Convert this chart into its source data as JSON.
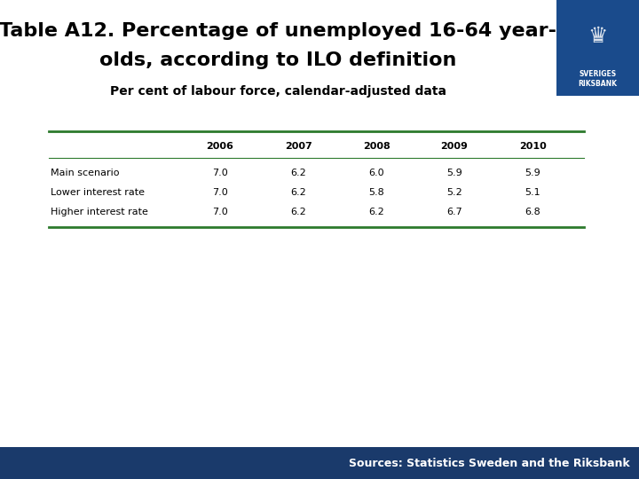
{
  "title_line1": "Table A12. Percentage of unemployed 16-64 year-",
  "title_line2": "olds, according to ILO definition",
  "subtitle": "Per cent of labour force, calendar-adjusted data",
  "columns": [
    "",
    "2006",
    "2007",
    "2008",
    "2009",
    "2010"
  ],
  "rows": [
    [
      "Main scenario",
      "7.0",
      "6.2",
      "6.0",
      "5.9",
      "5.9"
    ],
    [
      "Lower interest rate",
      "7.0",
      "6.2",
      "5.8",
      "5.2",
      "5.1"
    ],
    [
      "Higher interest rate",
      "7.0",
      "6.2",
      "6.2",
      "6.7",
      "6.8"
    ]
  ],
  "footer_text": "Sources: Statistics Sweden and the Riksbank",
  "bg_color": "#ffffff",
  "footer_bg_color": "#1a3a6b",
  "footer_text_color": "#ffffff",
  "table_line_color": "#2d7a2d",
  "title_color": "#000000",
  "subtitle_color": "#000000",
  "col_label_color": "#000000",
  "row_label_color": "#000000",
  "cell_text_color": "#000000",
  "logo_box_color": "#1a4b8c",
  "title_fontsize": 16,
  "subtitle_fontsize": 10,
  "table_fontsize": 8,
  "footer_fontsize": 9
}
